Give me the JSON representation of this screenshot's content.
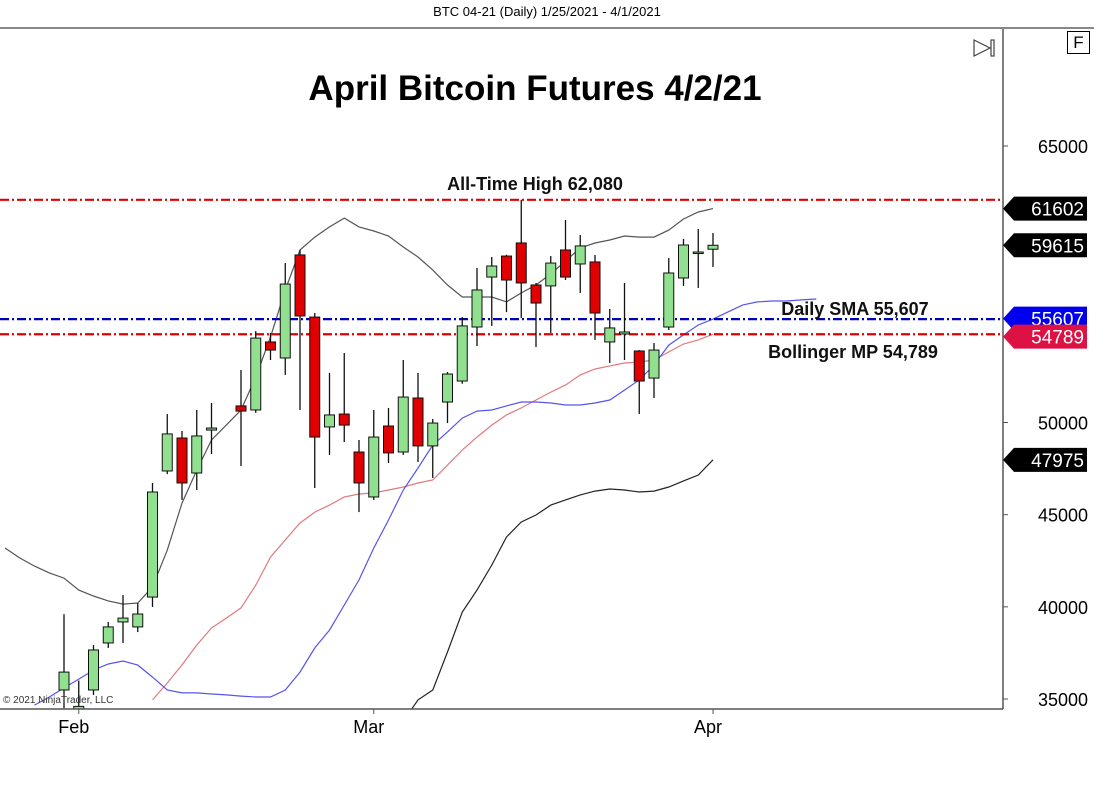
{
  "window_title": "BTC 04-21 (Daily)  1/25/2021 - 4/1/2021",
  "copyright": "© 2021 NinjaTrader, LLC",
  "buttons": {
    "f_label": "F",
    "scroll_end_icon": "skip-to-end-icon"
  },
  "colors": {
    "up": "#90e090",
    "down": "#e00000",
    "upper_band": "#555555",
    "lower_band": "#222222",
    "bollinger_mp": "#e07a80",
    "sma": "#5555ee",
    "ath_line": "#e00000",
    "sma_line": "#0000bb",
    "mp_line": "#e00000"
  },
  "chart_data": {
    "type": "candlestick",
    "title": "April Bitcoin Futures 4/2/21",
    "ylim": [
      35000,
      65000
    ],
    "y_ticks": [
      35000,
      40000,
      45000,
      50000,
      65000
    ],
    "x_ticks": [
      {
        "date": "2021-02-01",
        "label": "Feb"
      },
      {
        "date": "2021-03-01",
        "label": "Mar"
      },
      {
        "date": "2021-04-01",
        "label": "Apr"
      }
    ],
    "grid": false,
    "candle_fields": [
      "date",
      "open",
      "high",
      "low",
      "close"
    ],
    "candles": [
      [
        "2021-01-29",
        35490,
        39600,
        34500,
        36460
      ],
      [
        "2021-02-01",
        34000,
        36000,
        33500,
        34600
      ],
      [
        "2021-02-02",
        35490,
        37930,
        35220,
        37660
      ],
      [
        "2021-02-03",
        38040,
        39180,
        37770,
        38910
      ],
      [
        "2021-02-04",
        39180,
        40640,
        38040,
        39390
      ],
      [
        "2021-02-05",
        38910,
        40210,
        38630,
        39610
      ],
      [
        "2021-02-08",
        40530,
        46720,
        39990,
        46230
      ],
      [
        "2021-02-09",
        47370,
        50460,
        47200,
        49380
      ],
      [
        "2021-02-10",
        49160,
        49540,
        45800,
        46720
      ],
      [
        "2021-02-11",
        47260,
        50680,
        46340,
        49270
      ],
      [
        "2021-02-12",
        49590,
        51060,
        48290,
        49700
      ],
      [
        "2021-02-16",
        50900,
        52850,
        47640,
        50620
      ],
      [
        "2021-02-17",
        50680,
        54960,
        50520,
        54580
      ],
      [
        "2021-02-18",
        54370,
        54860,
        53390,
        53930
      ],
      [
        "2021-02-19",
        53500,
        58650,
        52580,
        57510
      ],
      [
        "2021-02-22",
        59090,
        59360,
        50680,
        55780
      ],
      [
        "2021-02-23",
        55720,
        55940,
        46450,
        49210
      ],
      [
        "2021-02-24",
        49760,
        52690,
        48240,
        50410
      ],
      [
        "2021-02-25",
        50460,
        53770,
        48940,
        49860
      ],
      [
        "2021-02-26",
        48400,
        49050,
        45140,
        46720
      ],
      [
        "2021-03-01",
        45960,
        50680,
        45800,
        49210
      ],
      [
        "2021-03-02",
        49810,
        50790,
        47800,
        48350
      ],
      [
        "2021-03-03",
        48400,
        53390,
        48240,
        51380
      ],
      [
        "2021-03-04",
        51330,
        52690,
        47860,
        48730
      ],
      [
        "2021-03-05",
        48730,
        50190,
        46990,
        49970
      ],
      [
        "2021-03-08",
        51110,
        52740,
        49970,
        52630
      ],
      [
        "2021-03-09",
        52250,
        55720,
        52100,
        55240
      ],
      [
        "2021-03-10",
        55180,
        58380,
        54150,
        57190
      ],
      [
        "2021-03-11",
        57890,
        58980,
        55240,
        58490
      ],
      [
        "2021-03-12",
        59030,
        59100,
        55990,
        57730
      ],
      [
        "2021-03-15",
        59740,
        62080,
        55670,
        57570
      ],
      [
        "2021-03-16",
        57460,
        57570,
        54100,
        56480
      ],
      [
        "2021-03-17",
        57410,
        59030,
        54860,
        58650
      ],
      [
        "2021-03-18",
        59360,
        60990,
        57730,
        57890
      ],
      [
        "2021-03-19",
        58600,
        60170,
        57030,
        59580
      ],
      [
        "2021-03-22",
        58710,
        59090,
        54480,
        55940
      ],
      [
        "2021-03-23",
        54370,
        56160,
        53230,
        55130
      ],
      [
        "2021-03-24",
        54800,
        57570,
        53390,
        54910
      ],
      [
        "2021-03-25",
        53880,
        53930,
        50460,
        52250
      ],
      [
        "2021-03-26",
        52410,
        54310,
        51330,
        53930
      ],
      [
        "2021-03-29",
        55180,
        58920,
        55020,
        58110
      ],
      [
        "2021-03-30",
        57840,
        59960,
        57410,
        59630
      ],
      [
        "2021-03-31",
        59200,
        60500,
        57300,
        59250
      ],
      [
        "2021-04-01",
        59400,
        60280,
        58440,
        59615
      ]
    ],
    "series": [
      {
        "key": "upper_band",
        "dates": [
          "2021-01-25",
          "2021-01-26",
          "2021-01-27",
          "2021-01-28",
          "2021-01-29",
          "2021-02-01",
          "2021-02-02",
          "2021-02-03",
          "2021-02-04",
          "2021-02-05",
          "2021-02-08",
          "2021-02-09",
          "2021-02-10",
          "2021-02-11",
          "2021-02-12",
          "2021-02-15",
          "2021-02-16",
          "2021-02-17",
          "2021-02-18",
          "2021-02-19",
          "2021-02-22",
          "2021-02-23",
          "2021-02-24",
          "2021-02-25",
          "2021-02-26",
          "2021-03-01",
          "2021-03-02",
          "2021-03-03",
          "2021-03-04",
          "2021-03-05",
          "2021-03-08",
          "2021-03-09",
          "2021-03-10",
          "2021-03-11",
          "2021-03-12",
          "2021-03-15",
          "2021-03-16",
          "2021-03-17",
          "2021-03-18",
          "2021-03-19",
          "2021-03-22",
          "2021-03-23",
          "2021-03-24",
          "2021-03-25",
          "2021-03-26",
          "2021-03-29",
          "2021-03-30",
          "2021-03-31",
          "2021-04-01"
        ],
        "values": [
          43190,
          42650,
          42210,
          41840,
          41560,
          40910,
          40590,
          40320,
          40150,
          40210,
          41080,
          43080,
          45630,
          47420,
          49050,
          49860,
          50680,
          52470,
          54640,
          57190,
          59360,
          60060,
          60610,
          61090,
          60610,
          60390,
          60120,
          59520,
          58980,
          58270,
          57460,
          56810,
          56810,
          56810,
          56540,
          57030,
          57460,
          58060,
          58760,
          59470,
          59740,
          59900,
          60120,
          60060,
          60060,
          60440,
          61040,
          61420,
          61602
        ]
      },
      {
        "key": "lower_band",
        "dates": [
          "2021-03-03",
          "2021-03-04",
          "2021-03-05",
          "2021-03-08",
          "2021-03-09",
          "2021-03-10",
          "2021-03-11",
          "2021-03-12",
          "2021-03-15",
          "2021-03-16",
          "2021-03-17",
          "2021-03-18",
          "2021-03-19",
          "2021-03-22",
          "2021-03-23",
          "2021-03-24",
          "2021-03-25",
          "2021-03-26",
          "2021-03-29",
          "2021-03-30",
          "2021-03-31",
          "2021-04-01"
        ],
        "values": [
          33800,
          34950,
          35490,
          37550,
          39720,
          40910,
          42270,
          43790,
          44600,
          44980,
          45520,
          45800,
          46070,
          46280,
          46390,
          46340,
          46230,
          46280,
          46500,
          46830,
          47150,
          47975
        ]
      },
      {
        "key": "bollinger_mp",
        "dates": [
          "2021-02-08",
          "2021-02-09",
          "2021-02-10",
          "2021-02-11",
          "2021-02-12",
          "2021-02-15",
          "2021-02-16",
          "2021-02-17",
          "2021-02-18",
          "2021-02-19",
          "2021-02-22",
          "2021-02-23",
          "2021-02-24",
          "2021-02-25",
          "2021-02-26",
          "2021-03-01",
          "2021-03-02",
          "2021-03-03",
          "2021-03-04",
          "2021-03-05",
          "2021-03-08",
          "2021-03-09",
          "2021-03-10",
          "2021-03-11",
          "2021-03-12",
          "2021-03-15",
          "2021-03-16",
          "2021-03-17",
          "2021-03-18",
          "2021-03-19",
          "2021-03-22",
          "2021-03-23",
          "2021-03-24",
          "2021-03-25",
          "2021-03-26",
          "2021-03-29",
          "2021-03-30",
          "2021-03-31",
          "2021-04-01"
        ],
        "values": [
          34950,
          35870,
          36850,
          37930,
          38850,
          39390,
          39940,
          41180,
          42700,
          43630,
          44550,
          45140,
          45520,
          45960,
          46120,
          46180,
          46340,
          46500,
          46720,
          46880,
          47690,
          48510,
          49210,
          49860,
          50410,
          50790,
          51220,
          51650,
          52030,
          52580,
          52900,
          53070,
          53230,
          53280,
          53390,
          53830,
          54260,
          54480,
          54789
        ]
      },
      {
        "key": "sma",
        "dates": [
          "2021-01-27",
          "2021-01-28",
          "2021-01-29",
          "2021-02-01",
          "2021-02-02",
          "2021-02-03",
          "2021-02-04",
          "2021-02-05",
          "2021-02-08",
          "2021-02-09",
          "2021-02-10",
          "2021-02-11",
          "2021-02-12",
          "2021-02-15",
          "2021-02-16",
          "2021-02-17",
          "2021-02-18",
          "2021-02-19",
          "2021-02-22",
          "2021-02-23",
          "2021-02-24",
          "2021-02-25",
          "2021-02-26",
          "2021-03-01",
          "2021-03-02",
          "2021-03-03",
          "2021-03-04",
          "2021-03-05",
          "2021-03-08",
          "2021-03-09",
          "2021-03-10",
          "2021-03-11",
          "2021-03-12",
          "2021-03-15",
          "2021-03-16",
          "2021-03-17",
          "2021-03-18",
          "2021-03-19",
          "2021-03-22",
          "2021-03-23",
          "2021-03-24",
          "2021-03-25",
          "2021-03-26",
          "2021-03-29",
          "2021-03-30",
          "2021-03-31",
          "2021-04-01",
          "2021-04-02",
          "2021-04-05",
          "2021-04-06",
          "2021-04-07",
          "2021-04-08",
          "2021-04-09",
          "2021-04-12"
        ],
        "values": [
          34670,
          35110,
          35600,
          36080,
          36570,
          36900,
          37060,
          36840,
          36190,
          35490,
          35330,
          35330,
          35270,
          35220,
          35160,
          35110,
          35110,
          35490,
          36460,
          37770,
          38740,
          40100,
          41460,
          43190,
          44710,
          46340,
          47530,
          48780,
          49490,
          50240,
          50620,
          50680,
          50900,
          51110,
          51110,
          51060,
          50950,
          50950,
          51060,
          51220,
          51760,
          52310,
          53120,
          54200,
          54750,
          55290,
          55607,
          55990,
          56370,
          56540,
          56590,
          56590,
          56650,
          56700
        ]
      }
    ],
    "price_markers": [
      {
        "value": 61602,
        "label": "61602",
        "color": "#000000"
      },
      {
        "value": 59615,
        "label": "59615",
        "color": "#000000"
      },
      {
        "value": 55607,
        "label": "55607",
        "color": "#0000ee"
      },
      {
        "value": 54789,
        "label": "54789",
        "color": "#dd1144"
      },
      {
        "value": 47975,
        "label": "47975",
        "color": "#000000"
      }
    ],
    "hlines": [
      {
        "key": "ath",
        "value": 62080,
        "text": "All-Time High 62,080",
        "color": "#e00000"
      },
      {
        "key": "sma",
        "value": 55607,
        "text": "Daily SMA 55,607",
        "color": "#0000bb"
      },
      {
        "key": "mp",
        "value": 54789,
        "text": "Bollinger MP 54,789",
        "color": "#e00000"
      }
    ]
  }
}
